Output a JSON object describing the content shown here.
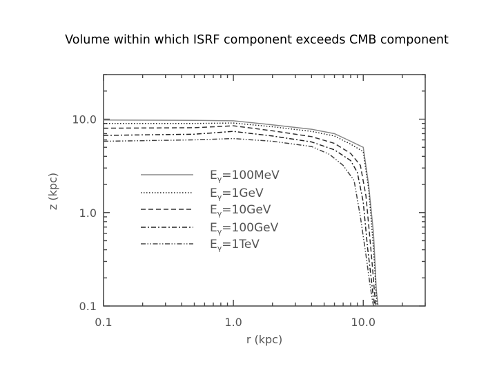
{
  "chart_data": {
    "type": "line",
    "title": "Volume within which ISRF component exceeds CMB component",
    "xlabel": "r (kpc)",
    "ylabel": "z (kpc)",
    "x_scale": "log",
    "y_scale": "log",
    "xlim": [
      0.1,
      30
    ],
    "ylim": [
      0.1,
      30
    ],
    "x_ticks": [
      "0.1",
      "1.0",
      "10.0"
    ],
    "y_ticks": [
      "0.1",
      "1.0",
      "10.0"
    ],
    "grid": false,
    "legend_position": "center-left",
    "series": [
      {
        "name": "100MeV",
        "style": "solid",
        "x": [
          0.1,
          0.5,
          1.0,
          2.0,
          4.0,
          6.0,
          8.0,
          10.0,
          11.0,
          12.0,
          12.3,
          12.6,
          13.0
        ],
        "y": [
          9.8,
          9.7,
          9.6,
          8.7,
          7.8,
          7.0,
          5.8,
          5.0,
          2.0,
          0.6,
          0.3,
          0.15,
          0.1
        ]
      },
      {
        "name": "1GeV",
        "style": "dotted",
        "x": [
          0.1,
          0.5,
          1.0,
          2.0,
          4.0,
          6.0,
          8.0,
          10.0,
          11.0,
          11.8,
          12.2,
          12.5,
          12.8
        ],
        "y": [
          9.0,
          9.0,
          9.1,
          8.3,
          7.4,
          6.6,
          5.4,
          4.5,
          1.8,
          0.55,
          0.28,
          0.15,
          0.1
        ]
      },
      {
        "name": "10GeV",
        "style": "dashed",
        "x": [
          0.1,
          0.5,
          1.0,
          2.0,
          4.0,
          6.0,
          8.0,
          9.5,
          10.5,
          11.3,
          11.8,
          12.2,
          12.5
        ],
        "y": [
          8.0,
          8.1,
          8.5,
          7.5,
          6.5,
          5.5,
          4.3,
          3.2,
          1.5,
          0.5,
          0.25,
          0.14,
          0.1
        ]
      },
      {
        "name": "100GeV",
        "style": "dash-dot",
        "x": [
          0.1,
          0.5,
          1.0,
          2.0,
          4.0,
          6.0,
          8.0,
          9.0,
          10.0,
          10.8,
          11.5,
          11.9,
          12.3
        ],
        "y": [
          6.7,
          6.9,
          7.4,
          6.6,
          5.7,
          4.7,
          3.6,
          2.7,
          1.3,
          0.42,
          0.2,
          0.13,
          0.1
        ]
      },
      {
        "name": "1TeV",
        "style": "dash-dot-dot",
        "x": [
          0.1,
          0.5,
          1.0,
          2.0,
          4.0,
          5.5,
          7.0,
          8.5,
          9.5,
          10.5,
          11.2,
          11.7,
          12.0
        ],
        "y": [
          5.8,
          6.0,
          6.2,
          5.8,
          5.1,
          4.2,
          3.2,
          2.2,
          0.9,
          0.35,
          0.18,
          0.12,
          0.1
        ]
      }
    ]
  },
  "legend_prefix": "E",
  "legend_subscript": "γ",
  "legend_equals": "="
}
